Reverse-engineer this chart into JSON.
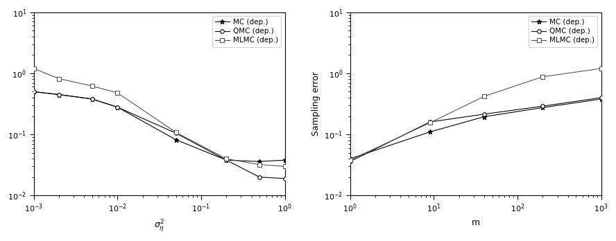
{
  "left": {
    "xlabel": "$\\sigma^2_\\eta$",
    "ylabel": "",
    "xlim": [
      0.001,
      1.0
    ],
    "ylim": [
      0.01,
      10.0
    ],
    "MC": {
      "x": [
        0.001,
        0.002,
        0.005,
        0.01,
        0.05,
        0.2,
        0.5,
        1.0
      ],
      "y": [
        0.5,
        0.45,
        0.38,
        0.28,
        0.082,
        0.038,
        0.036,
        0.038
      ]
    },
    "QMC": {
      "x": [
        0.001,
        0.002,
        0.005,
        0.01,
        0.05,
        0.2,
        0.5,
        1.0
      ],
      "y": [
        0.5,
        0.45,
        0.38,
        0.28,
        0.105,
        0.038,
        0.02,
        0.019
      ]
    },
    "MLMC": {
      "x": [
        0.001,
        0.002,
        0.005,
        0.01,
        0.05,
        0.2,
        0.5,
        1.0
      ],
      "y": [
        1.2,
        0.82,
        0.62,
        0.48,
        0.108,
        0.04,
        0.032,
        0.03
      ]
    }
  },
  "right": {
    "xlabel": "m",
    "ylabel": "Sampling error",
    "xlim": [
      1.0,
      1000.0
    ],
    "ylim": [
      0.01,
      10.0
    ],
    "MC": {
      "x": [
        1,
        9,
        40,
        200,
        1000
      ],
      "y": [
        0.04,
        0.11,
        0.195,
        0.275,
        0.38
      ]
    },
    "QMC": {
      "x": [
        1,
        9,
        40,
        200,
        1000
      ],
      "y": [
        0.036,
        0.16,
        0.215,
        0.29,
        0.4
      ]
    },
    "MLMC": {
      "x": [
        1,
        9,
        40,
        200,
        1000
      ],
      "y": [
        0.038,
        0.155,
        0.42,
        0.88,
        1.2
      ]
    }
  },
  "line_color": "#000000",
  "mlmc_color": "#555555",
  "legend_labels": [
    "MC (dep.)",
    "QMC (dep.)",
    "MLMC (dep.)"
  ],
  "figsize": [
    8.88,
    3.48
  ],
  "dpi": 100
}
